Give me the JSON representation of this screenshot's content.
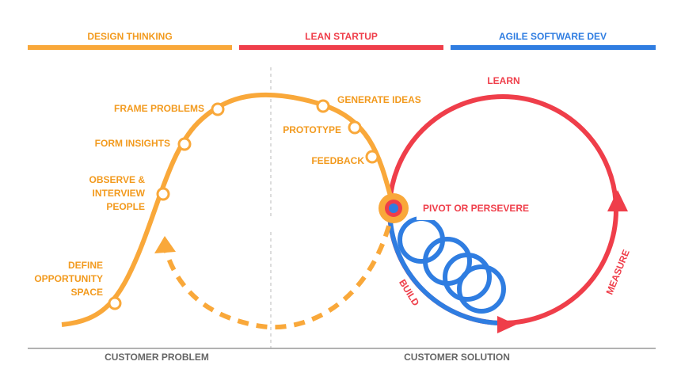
{
  "headers": [
    "DESIGN THINKING",
    "LEAN STARTUP",
    "AGILE SOFTWARE DEV"
  ],
  "steps": {
    "learn": "LEARN",
    "frame": "FRAME PROBLEMS",
    "generate": "GENERATE IDEAS",
    "prototype": "PROTOTYPE",
    "insights": "FORM INSIGHTS",
    "feedback": "FEEDBACK",
    "observe": [
      "OBSERVE &",
      "INTERVIEW",
      "PEOPLE"
    ],
    "pivot": "PIVOT OR PERSEVERE",
    "define": [
      "DEFINE",
      "OPPORTUNITY",
      "SPACE"
    ],
    "build": "BUILD",
    "measure": "MEASURE"
  },
  "footers": [
    "CUSTOMER PROBLEM",
    "CUSTOMER SOLUTION"
  ]
}
